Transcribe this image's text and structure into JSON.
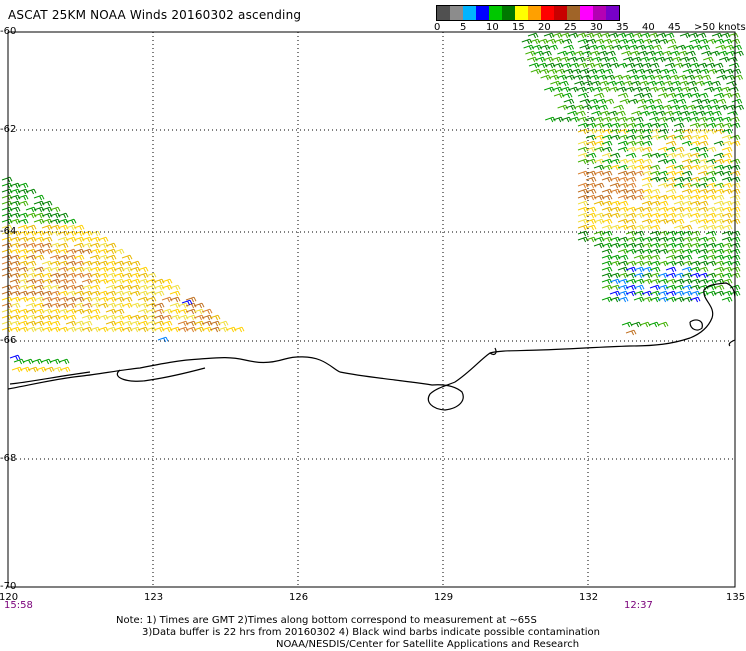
{
  "title": "ASCAT 25KM NOAA Winds 20160302 ascending",
  "legend": {
    "labels": [
      "0",
      "5",
      "10",
      "15",
      "20",
      "25",
      "30",
      "35",
      "40",
      "45",
      ">50 knots"
    ],
    "colors": [
      "#505050",
      "#8c8c8c",
      "#00b4ff",
      "#0000ff",
      "#00c800",
      "#007800",
      "#ffff00",
      "#ffa000",
      "#ff0000",
      "#c80000",
      "#a06428",
      "#ff00ff",
      "#b400b4",
      "#7800c8"
    ]
  },
  "axes": {
    "lat_labels": [
      "-60",
      "-62",
      "-64",
      "-66",
      "-68",
      "-70"
    ],
    "lon_labels": [
      "120",
      "123",
      "126",
      "129",
      "132",
      "135"
    ]
  },
  "times": {
    "left": "15:58",
    "right": "12:37"
  },
  "notes": [
    "Note: 1) Times are GMT 2)Times along bottom correspond to measurement at ~65S",
    "3)Data buffer is 22 hrs from 20160302 4) Black wind barbs indicate possible contamination",
    "NOAA/NESDIS/Center for Satellite Applications and Research"
  ],
  "map_colors": {
    "coast": "#000000",
    "grid": "#000000",
    "swath_high": [
      "#ffd000",
      "#e8b800",
      "#f0e040"
    ],
    "swath_mid": [
      "#00a000",
      "#008000",
      "#40b000"
    ],
    "swath_strong": [
      "#c07020",
      "#d88030"
    ],
    "swath_low": [
      "#0000ff",
      "#0080ff"
    ]
  }
}
